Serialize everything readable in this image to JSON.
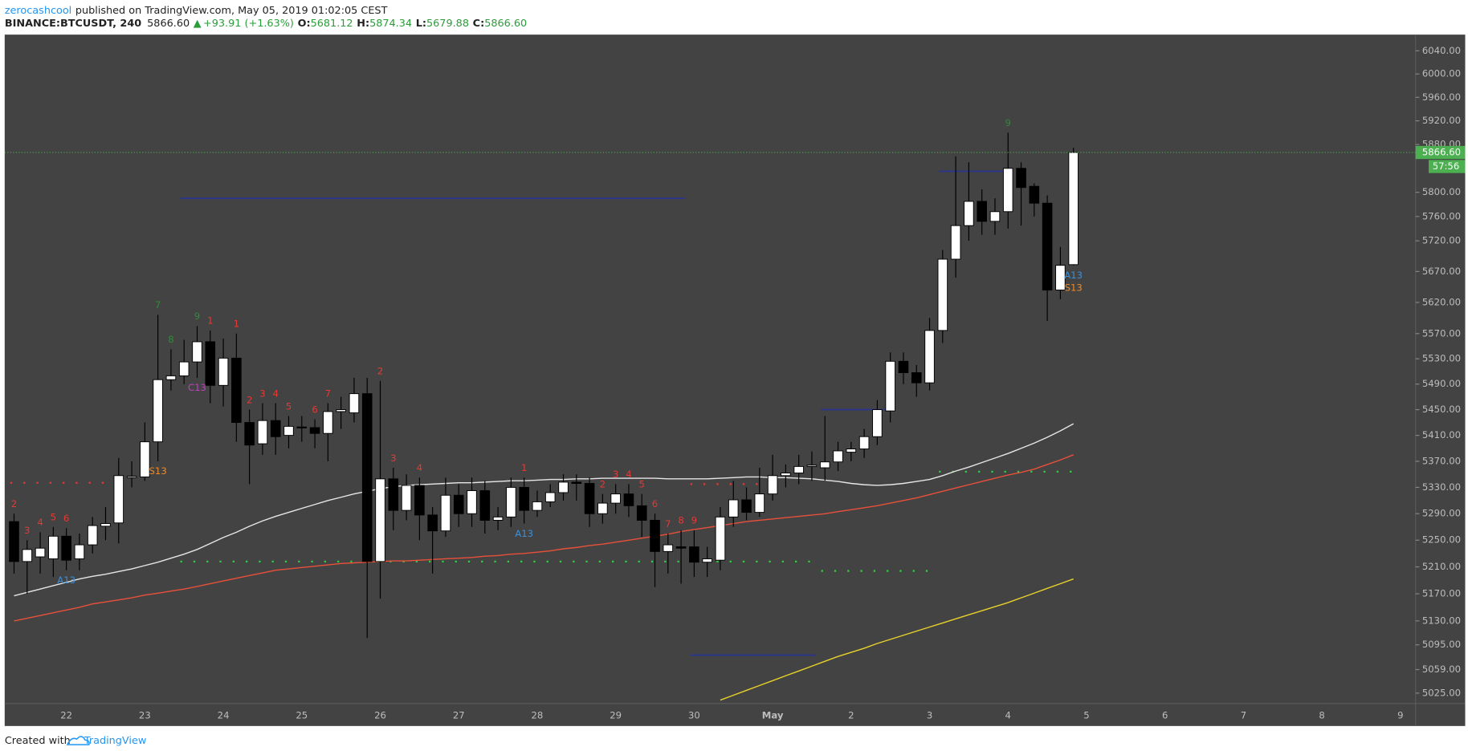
{
  "header": {
    "author": "zerocashcool",
    "published": "published on TradingView.com, May 05, 2019 01:02:05 CEST",
    "symbol": "BINANCE:BTCUSDT, 240",
    "last": "5866.60",
    "arrow": "▲",
    "change": "+93.91 (+1.63%)",
    "ohlc": [
      {
        "label": "O:",
        "value": "5681.12"
      },
      {
        "label": "H:",
        "value": "5874.34"
      },
      {
        "label": "L:",
        "value": "5679.88"
      },
      {
        "label": "C:",
        "value": "5866.60"
      }
    ]
  },
  "chart_data": {
    "type": "candlestick",
    "log_scale": true,
    "grid": false,
    "up_color": "#ffffff",
    "down_color": "#000000",
    "wick_color": "#000000",
    "ylim": [
      5010,
      6068
    ],
    "yticks": [
      {
        "value": 6040,
        "label": "6040.00"
      },
      {
        "value": 6000,
        "label": "6000.00"
      },
      {
        "value": 5960,
        "label": "5960.00"
      },
      {
        "value": 5920,
        "label": "5920.00"
      },
      {
        "value": 5880,
        "label": "5880.00"
      },
      {
        "value": 5800,
        "label": "5800.00"
      },
      {
        "value": 5760,
        "label": "5760.00"
      },
      {
        "value": 5720,
        "label": "5720.00"
      },
      {
        "value": 5670,
        "label": "5670.00"
      },
      {
        "value": 5620,
        "label": "5620.00"
      },
      {
        "value": 5570,
        "label": "5570.00"
      },
      {
        "value": 5530,
        "label": "5530.00"
      },
      {
        "value": 5490,
        "label": "5490.00"
      },
      {
        "value": 5450,
        "label": "5450.00"
      },
      {
        "value": 5410,
        "label": "5410.00"
      },
      {
        "value": 5370,
        "label": "5370.00"
      },
      {
        "value": 5330,
        "label": "5330.00"
      },
      {
        "value": 5290,
        "label": "5290.00"
      },
      {
        "value": 5250,
        "label": "5250.00"
      },
      {
        "value": 5210,
        "label": "5210.00"
      },
      {
        "value": 5170,
        "label": "5170.00"
      },
      {
        "value": 5130,
        "label": "5130.00"
      },
      {
        "value": 5095,
        "label": "5095.00"
      },
      {
        "value": 5059,
        "label": "5059.00"
      },
      {
        "value": 5025,
        "label": "5025.00"
      }
    ],
    "x_labels": [
      "22",
      "23",
      "24",
      "25",
      "26",
      "27",
      "28",
      "29",
      "30",
      "May",
      "2",
      "3",
      "4",
      "5",
      "6",
      "7",
      "8",
      "9"
    ],
    "open": [
      5278,
      5218,
      5225,
      5222,
      5256,
      5222,
      5243,
      5271,
      5276,
      5345,
      5346,
      5400,
      5497,
      5503,
      5525,
      5557,
      5488,
      5531,
      5430,
      5397,
      5433,
      5410,
      5423,
      5422,
      5413,
      5447,
      5445,
      5475,
      5218,
      5343,
      5295,
      5333,
      5288,
      5264,
      5318,
      5290,
      5325,
      5280,
      5285,
      5330,
      5295,
      5308,
      5322,
      5338,
      5336,
      5290,
      5306,
      5320,
      5302,
      5280,
      5233,
      5240,
      5240,
      5217,
      5220,
      5285,
      5311,
      5292,
      5320,
      5348,
      5352,
      5362,
      5360,
      5369,
      5384,
      5389,
      5408,
      5448,
      5526,
      5508,
      5492,
      5575,
      5690,
      5745,
      5785,
      5752,
      5768,
      5840,
      5810,
      5782,
      5640,
      5681.12
    ],
    "high": [
      5290,
      5250,
      5262,
      5270,
      5268,
      5260,
      5285,
      5300,
      5375,
      5370,
      5430,
      5600,
      5545,
      5560,
      5582,
      5575,
      5562,
      5570,
      5450,
      5460,
      5460,
      5440,
      5440,
      5435,
      5460,
      5470,
      5500,
      5500,
      5495,
      5360,
      5350,
      5345,
      5300,
      5345,
      5335,
      5345,
      5340,
      5300,
      5345,
      5345,
      5325,
      5335,
      5350,
      5350,
      5345,
      5320,
      5335,
      5335,
      5320,
      5290,
      5260,
      5265,
      5265,
      5240,
      5300,
      5340,
      5330,
      5360,
      5380,
      5365,
      5380,
      5385,
      5440,
      5400,
      5400,
      5420,
      5465,
      5540,
      5540,
      5520,
      5595,
      5705,
      5860,
      5850,
      5805,
      5790,
      5900,
      5850,
      5815,
      5795,
      5710,
      5874.34
    ],
    "low": [
      5200,
      5170,
      5200,
      5195,
      5205,
      5205,
      5230,
      5250,
      5245,
      5330,
      5340,
      5370,
      5480,
      5490,
      5500,
      5460,
      5455,
      5400,
      5335,
      5380,
      5380,
      5390,
      5400,
      5390,
      5370,
      5420,
      5430,
      5105,
      5163,
      5265,
      5280,
      5250,
      5200,
      5255,
      5270,
      5270,
      5260,
      5265,
      5270,
      5275,
      5285,
      5300,
      5310,
      5310,
      5270,
      5275,
      5290,
      5285,
      5255,
      5180,
      5200,
      5185,
      5195,
      5195,
      5205,
      5270,
      5280,
      5285,
      5310,
      5330,
      5335,
      5340,
      5340,
      5355,
      5370,
      5375,
      5395,
      5430,
      5490,
      5470,
      5480,
      5555,
      5660,
      5720,
      5730,
      5730,
      5740,
      5745,
      5760,
      5590,
      5625,
      5679.88
    ],
    "close": [
      5218,
      5236,
      5238,
      5256,
      5220,
      5243,
      5272,
      5275,
      5348,
      5347,
      5400,
      5497,
      5503,
      5525,
      5557,
      5488,
      5531,
      5430,
      5395,
      5433,
      5408,
      5424,
      5422,
      5413,
      5447,
      5450,
      5475,
      5218,
      5343,
      5295,
      5333,
      5288,
      5264,
      5318,
      5290,
      5325,
      5280,
      5285,
      5330,
      5295,
      5308,
      5322,
      5338,
      5336,
      5290,
      5306,
      5320,
      5302,
      5280,
      5233,
      5243,
      5238,
      5217,
      5222,
      5285,
      5311,
      5292,
      5320,
      5348,
      5352,
      5362,
      5364,
      5369,
      5386,
      5389,
      5408,
      5450,
      5526,
      5508,
      5492,
      5575,
      5690,
      5745,
      5785,
      5752,
      5768,
      5840,
      5808,
      5782,
      5640,
      5680,
      5866.6
    ],
    "overlays": [
      {
        "color": "#e6e6e6",
        "values": [
          5167,
          5172,
          5177,
          5182,
          5187,
          5192,
          5196,
          5199,
          5203,
          5207,
          5212,
          5217,
          5223,
          5229,
          5236,
          5245,
          5254,
          5262,
          5271,
          5279,
          5286,
          5292,
          5298,
          5304,
          5310,
          5315,
          5320,
          5324,
          5328,
          5331,
          5333,
          5334,
          5335,
          5336,
          5337,
          5337,
          5338,
          5339,
          5340,
          5340,
          5341,
          5342,
          5342,
          5343,
          5343,
          5344,
          5344,
          5344,
          5344,
          5344,
          5343,
          5343,
          5343,
          5343,
          5344,
          5345,
          5346,
          5346,
          5345,
          5345,
          5344,
          5343,
          5341,
          5339,
          5336,
          5334,
          5333,
          5334,
          5336,
          5339,
          5342,
          5348,
          5355,
          5361,
          5368,
          5375,
          5382,
          5390,
          5398,
          5407,
          5417,
          5428
        ]
      },
      {
        "color": "#e8503a",
        "values": [
          5130,
          5134,
          5138,
          5142,
          5146,
          5150,
          5155,
          5158,
          5161,
          5164,
          5168,
          5171,
          5174,
          5177,
          5181,
          5185,
          5189,
          5193,
          5197,
          5201,
          5205,
          5207,
          5209,
          5211,
          5213,
          5215,
          5216,
          5217,
          5218,
          5219,
          5219,
          5220,
          5221,
          5222,
          5223,
          5224,
          5226,
          5227,
          5229,
          5230,
          5232,
          5234,
          5237,
          5239,
          5242,
          5244,
          5247,
          5250,
          5253,
          5256,
          5259,
          5263,
          5266,
          5269,
          5272,
          5275,
          5278,
          5280,
          5282,
          5284,
          5286,
          5288,
          5290,
          5293,
          5296,
          5299,
          5302,
          5306,
          5310,
          5314,
          5319,
          5324,
          5329,
          5334,
          5339,
          5344,
          5349,
          5353,
          5358,
          5365,
          5372,
          5380
        ]
      },
      {
        "color": "#e8d22a",
        "values": [
          null,
          null,
          null,
          null,
          null,
          null,
          null,
          null,
          null,
          null,
          null,
          null,
          null,
          null,
          null,
          null,
          null,
          null,
          null,
          null,
          null,
          null,
          null,
          null,
          null,
          null,
          null,
          null,
          null,
          null,
          null,
          null,
          null,
          null,
          null,
          null,
          null,
          null,
          null,
          null,
          null,
          null,
          null,
          null,
          null,
          null,
          null,
          null,
          null,
          null,
          null,
          null,
          null,
          null,
          5015,
          5022,
          5029,
          5036,
          5043,
          5050,
          5057,
          5064,
          5071,
          5078,
          5084,
          5090,
          5097,
          5103,
          5109,
          5115,
          5121,
          5127,
          5133,
          5139,
          5145,
          5151,
          5157,
          5164,
          5171,
          5178,
          5185,
          5192
        ]
      }
    ],
    "levels": [
      {
        "value": 5337,
        "from": 0,
        "to": 7,
        "color": "#e53935",
        "style": "dotted"
      },
      {
        "value": 5218,
        "from": 13,
        "to": 61,
        "color": "#2ecc40",
        "style": "dotted"
      },
      {
        "value": 5204,
        "from": 62,
        "to": 70,
        "color": "#2ecc40",
        "style": "dotted"
      },
      {
        "value": 5335,
        "from": 52,
        "to": 57,
        "color": "#e53935",
        "style": "dotted"
      },
      {
        "value": 5354,
        "from": 71,
        "to": 81,
        "color": "#2ecc40",
        "style": "dotted"
      },
      {
        "value": 5790,
        "from": 13,
        "to": 51,
        "color": "#283593",
        "style": "solid"
      },
      {
        "value": 5450,
        "from": 62,
        "to": 67,
        "color": "#283593",
        "style": "solid"
      },
      {
        "value": 5080,
        "from": 52,
        "to": 61,
        "color": "#283593",
        "style": "solid"
      },
      {
        "value": 5835,
        "from": 71,
        "to": 76,
        "color": "#283593",
        "style": "solid"
      }
    ],
    "annotations": [
      {
        "text": "2",
        "candle": 0,
        "side": "above",
        "color": "#e53935"
      },
      {
        "text": "3",
        "candle": 1,
        "side": "above",
        "color": "#e53935"
      },
      {
        "text": "4",
        "candle": 2,
        "side": "above",
        "color": "#e53935"
      },
      {
        "text": "5",
        "candle": 3,
        "side": "above",
        "color": "#e53935"
      },
      {
        "text": "6",
        "candle": 4,
        "side": "above",
        "color": "#e53935"
      },
      {
        "text": "A13",
        "candle": 4,
        "side": "below",
        "color": "#3d8fd6"
      },
      {
        "text": "7",
        "candle": 11,
        "side": "above",
        "color": "#2e8b3a"
      },
      {
        "text": "8",
        "candle": 12,
        "side": "above",
        "color": "#2e8b3a"
      },
      {
        "text": "9",
        "candle": 14,
        "side": "above",
        "color": "#2e8b3a"
      },
      {
        "text": "S13",
        "candle": 11,
        "side": "below",
        "color": "#f08a24"
      },
      {
        "text": "C13",
        "candle": 14,
        "side": "below",
        "color": "#c03fc0"
      },
      {
        "text": "1",
        "candle": 15,
        "side": "above",
        "color": "#e53935"
      },
      {
        "text": "1",
        "candle": 17,
        "side": "above",
        "color": "#e53935"
      },
      {
        "text": "2",
        "candle": 18,
        "side": "above",
        "color": "#e53935"
      },
      {
        "text": "3",
        "candle": 19,
        "side": "above",
        "color": "#e53935"
      },
      {
        "text": "4",
        "candle": 20,
        "side": "above",
        "color": "#e53935"
      },
      {
        "text": "5",
        "candle": 21,
        "side": "above",
        "color": "#e53935"
      },
      {
        "text": "6",
        "candle": 23,
        "side": "above",
        "color": "#e53935"
      },
      {
        "text": "7",
        "candle": 24,
        "side": "above",
        "color": "#e53935"
      },
      {
        "text": "2",
        "candle": 28,
        "side": "above",
        "color": "#e53935"
      },
      {
        "text": "3",
        "candle": 29,
        "side": "above",
        "color": "#e53935"
      },
      {
        "text": "4",
        "candle": 31,
        "side": "above",
        "color": "#e53935"
      },
      {
        "text": "1",
        "candle": 39,
        "side": "above",
        "color": "#e53935"
      },
      {
        "text": "A13",
        "candle": 39,
        "side": "below",
        "color": "#3d8fd6"
      },
      {
        "text": "2",
        "candle": 45,
        "side": "above",
        "color": "#e53935"
      },
      {
        "text": "3",
        "candle": 46,
        "side": "above",
        "color": "#e53935"
      },
      {
        "text": "4",
        "candle": 47,
        "side": "above",
        "color": "#e53935"
      },
      {
        "text": "5",
        "candle": 48,
        "side": "above",
        "color": "#e53935"
      },
      {
        "text": "6",
        "candle": 49,
        "side": "above",
        "color": "#e53935"
      },
      {
        "text": "7",
        "candle": 50,
        "side": "above",
        "color": "#e53935"
      },
      {
        "text": "8",
        "candle": 51,
        "side": "above",
        "color": "#e53935"
      },
      {
        "text": "9",
        "candle": 52,
        "side": "above",
        "color": "#e53935"
      },
      {
        "text": "9",
        "candle": 76,
        "side": "above",
        "color": "#2e8b3a"
      },
      {
        "text": "A13",
        "candle": 81,
        "side": "below",
        "color": "#3d8fd6"
      },
      {
        "text": "S13",
        "candle": 81,
        "side": "below",
        "color": "#f08a24"
      }
    ],
    "last_price_label": "5866.60",
    "countdown": "57:56"
  },
  "footer": {
    "created": "Created with",
    "brand": "TradingView"
  }
}
